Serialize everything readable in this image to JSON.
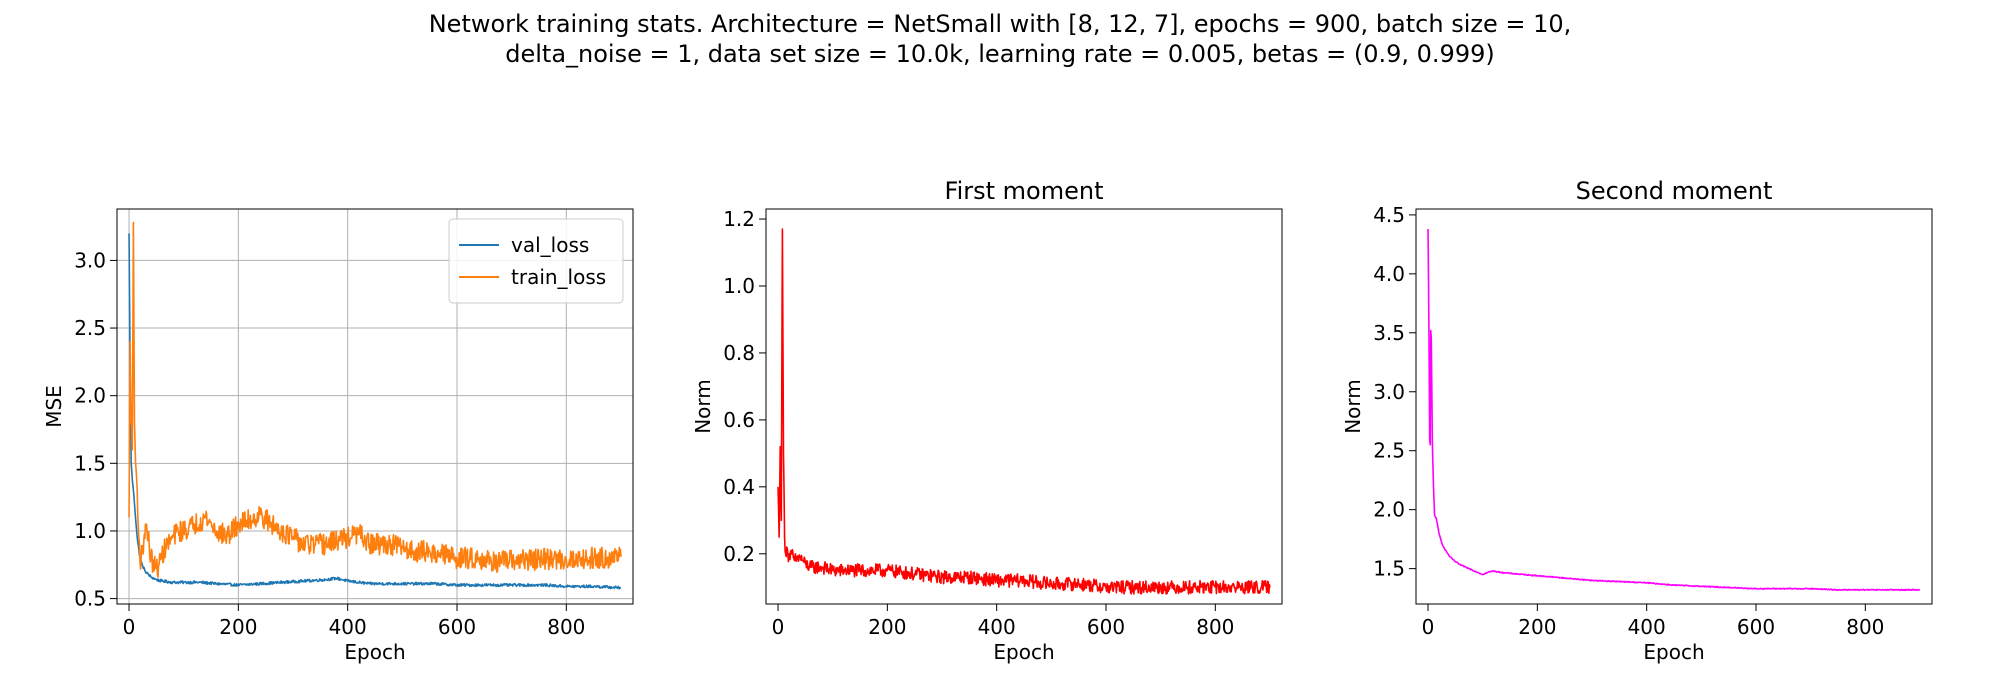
{
  "figure": {
    "suptitle_line1": "Network training stats. Architecture = NetSmall with [8, 12, 7], epochs = 900, batch size = 10,",
    "suptitle_line2": "delta_noise = 1, data set size = 10.0k, learning rate = 0.005, betas = (0.9, 0.999)"
  },
  "chart_data": [
    {
      "type": "line",
      "title": "",
      "xlabel": "Epoch",
      "ylabel": "MSE",
      "xlim": [
        -22,
        922
      ],
      "ylim": [
        0.46,
        3.38
      ],
      "xticks": [
        0,
        200,
        400,
        600,
        800
      ],
      "yticks": [
        0.5,
        1.0,
        1.5,
        2.0,
        2.5,
        3.0
      ],
      "ytick_labels": [
        "0.5",
        "1.0",
        "1.5",
        "2.0",
        "2.5",
        "3.0"
      ],
      "grid": true,
      "legend": "top-right",
      "series": [
        {
          "name": "val_loss",
          "color": "#1f77b4",
          "x": [
            0,
            2,
            4,
            6,
            8,
            10,
            15,
            20,
            25,
            30,
            40,
            50,
            60,
            80,
            100,
            130,
            160,
            200,
            240,
            280,
            320,
            360,
            380,
            400,
            440,
            480,
            520,
            560,
            600,
            640,
            680,
            720,
            760,
            800,
            850,
            900
          ],
          "y": [
            3.2,
            2.2,
            1.5,
            1.38,
            1.3,
            1.2,
            0.95,
            0.8,
            0.74,
            0.7,
            0.66,
            0.64,
            0.63,
            0.62,
            0.62,
            0.62,
            0.61,
            0.6,
            0.61,
            0.62,
            0.63,
            0.64,
            0.65,
            0.63,
            0.61,
            0.61,
            0.61,
            0.61,
            0.6,
            0.6,
            0.6,
            0.6,
            0.6,
            0.59,
            0.59,
            0.58
          ],
          "noise": 0.01
        },
        {
          "name": "train_loss",
          "color": "#ff7f0e",
          "x": [
            0,
            2,
            4,
            6,
            8,
            10,
            12,
            15,
            18,
            20,
            25,
            30,
            35,
            40,
            45,
            50,
            55,
            60,
            70,
            80,
            90,
            100,
            120,
            140,
            160,
            180,
            200,
            220,
            240,
            260,
            280,
            300,
            320,
            340,
            360,
            380,
            400,
            420,
            440,
            460,
            480,
            500,
            520,
            540,
            560,
            600,
            640,
            660,
            680,
            700,
            750,
            800,
            850,
            900
          ],
          "y": [
            1.1,
            2.4,
            1.8,
            1.6,
            3.28,
            1.8,
            1.5,
            1.3,
            0.95,
            0.78,
            0.85,
            1.05,
            0.95,
            0.8,
            0.75,
            0.72,
            0.75,
            0.82,
            0.9,
            0.95,
            1.0,
            1.0,
            1.05,
            1.1,
            1.0,
            0.96,
            1.05,
            1.08,
            1.12,
            1.05,
            1.0,
            0.95,
            0.9,
            0.9,
            0.9,
            0.93,
            0.95,
            0.98,
            0.9,
            0.9,
            0.9,
            0.88,
            0.85,
            0.85,
            0.84,
            0.8,
            0.8,
            0.78,
            0.77,
            0.78,
            0.79,
            0.79,
            0.8,
            0.81
          ],
          "noise": 0.08
        }
      ]
    },
    {
      "type": "line",
      "title": "First moment",
      "xlabel": "Epoch",
      "ylabel": "Norm",
      "xlim": [
        -22,
        922
      ],
      "ylim": [
        0.05,
        1.23
      ],
      "xticks": [
        0,
        200,
        400,
        600,
        800
      ],
      "yticks": [
        0.2,
        0.4,
        0.6,
        0.8,
        1.0,
        1.2
      ],
      "ytick_labels": [
        "0.2",
        "0.4",
        "0.6",
        "0.8",
        "1.0",
        "1.2"
      ],
      "grid": false,
      "series": [
        {
          "color": "#ff0000",
          "x": [
            0,
            2,
            4,
            6,
            8,
            10,
            12,
            14,
            16,
            18,
            20,
            25,
            30,
            40,
            50,
            60,
            80,
            100,
            150,
            200,
            250,
            300,
            350,
            400,
            450,
            500,
            550,
            600,
            650,
            700,
            750,
            800,
            850,
            900
          ],
          "y": [
            0.4,
            0.25,
            0.52,
            0.3,
            1.17,
            0.5,
            0.25,
            0.2,
            0.22,
            0.2,
            0.19,
            0.2,
            0.18,
            0.19,
            0.17,
            0.16,
            0.16,
            0.15,
            0.15,
            0.15,
            0.14,
            0.13,
            0.13,
            0.12,
            0.12,
            0.11,
            0.11,
            0.1,
            0.1,
            0.1,
            0.1,
            0.1,
            0.1,
            0.1
          ],
          "noise": 0.02
        }
      ]
    },
    {
      "type": "line",
      "title": "Second moment",
      "xlabel": "Epoch",
      "ylabel": "Norm",
      "xlim": [
        -22,
        922
      ],
      "ylim": [
        1.2,
        4.55
      ],
      "xticks": [
        0,
        200,
        400,
        600,
        800
      ],
      "yticks": [
        1.5,
        2.0,
        2.5,
        3.0,
        3.5,
        4.0,
        4.5
      ],
      "ytick_labels": [
        "1.5",
        "2.0",
        "2.5",
        "3.0",
        "3.5",
        "4.0",
        "4.5"
      ],
      "grid": false,
      "series": [
        {
          "color": "#ff00ff",
          "x": [
            0,
            1,
            2,
            3,
            4,
            5,
            6,
            8,
            10,
            12,
            15,
            20,
            25,
            30,
            40,
            50,
            60,
            70,
            80,
            90,
            100,
            110,
            120,
            130,
            150,
            200,
            250,
            300,
            350,
            400,
            450,
            500,
            550,
            600,
            650,
            700,
            750,
            800,
            850,
            900
          ],
          "y": [
            4.38,
            3.9,
            3.3,
            2.6,
            2.55,
            3.52,
            3.45,
            2.55,
            2.2,
            1.95,
            1.93,
            1.8,
            1.72,
            1.67,
            1.6,
            1.56,
            1.53,
            1.51,
            1.49,
            1.47,
            1.45,
            1.47,
            1.48,
            1.47,
            1.46,
            1.44,
            1.42,
            1.4,
            1.39,
            1.38,
            1.36,
            1.35,
            1.34,
            1.33,
            1.33,
            1.33,
            1.32,
            1.32,
            1.32,
            1.32
          ],
          "noise": 0.004
        }
      ]
    }
  ]
}
